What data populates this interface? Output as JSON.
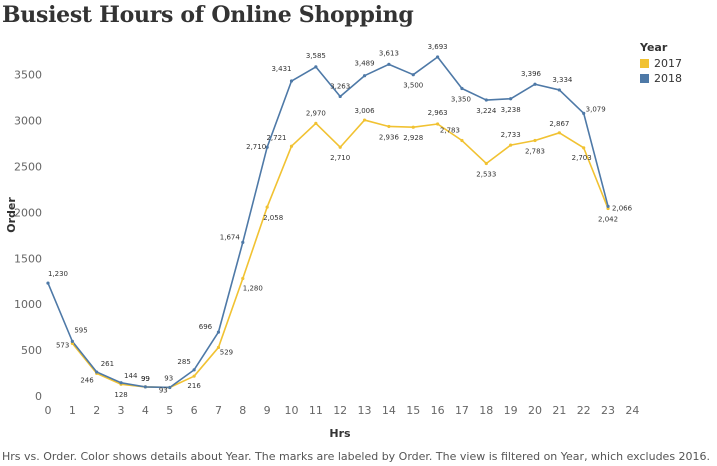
{
  "title": "Busiest Hours of Online Shopping",
  "caption": "Hrs vs. Order.  Color shows details about Year.  The marks are labeled by Order. The view is filtered on Year, which excludes 2016.",
  "legend": {
    "title": "Year",
    "items": [
      {
        "label": "2017",
        "color": "#f1c232"
      },
      {
        "label": "2018",
        "color": "#4e79a7"
      }
    ]
  },
  "chart_data": {
    "type": "line",
    "xlabel": "Hrs",
    "ylabel": "Order",
    "x_ticks": [
      "0",
      "1",
      "2",
      "3",
      "4",
      "5",
      "6",
      "7",
      "8",
      "9",
      "10",
      "11",
      "12",
      "13",
      "14",
      "15",
      "16",
      "17",
      "18",
      "19",
      "20",
      "21",
      "22",
      "23",
      "24"
    ],
    "y_ticks": [
      "0",
      "500",
      "1000",
      "1500",
      "2000",
      "2500",
      "3000",
      "3500"
    ],
    "xlim": [
      0,
      24
    ],
    "ylim": [
      0,
      3700
    ],
    "grid": false,
    "legend_position": "top-right",
    "x": [
      0,
      1,
      2,
      3,
      4,
      5,
      6,
      7,
      8,
      9,
      10,
      11,
      12,
      13,
      14,
      15,
      16,
      17,
      18,
      19,
      20,
      21,
      22,
      23
    ],
    "series": [
      {
        "name": "2017",
        "color": "#f1c232",
        "values": [
          null,
          573,
          246,
          128,
          99,
          93,
          216,
          529,
          1280,
          2058,
          2721,
          2970,
          2710,
          3006,
          2936,
          2928,
          2963,
          2783,
          2533,
          2733,
          2783,
          2867,
          2703,
          2042
        ],
        "labels": [
          "",
          "573",
          "246",
          "128",
          "99",
          "93",
          "216",
          "529",
          "1,280",
          "2,058",
          "2,721",
          "2,970",
          "2,710",
          "3,006",
          "2,936",
          "2,928",
          "2,963",
          "2,783",
          "2,533",
          "2,733",
          "2,783",
          "2,867",
          "2,703",
          "2,042"
        ]
      },
      {
        "name": "2018",
        "color": "#4e79a7",
        "values": [
          1230,
          595,
          261,
          144,
          99,
          93,
          285,
          696,
          1674,
          2710,
          3431,
          3585,
          3263,
          3489,
          3613,
          3500,
          3693,
          3350,
          3224,
          3238,
          3396,
          3334,
          3079,
          2066
        ],
        "labels": [
          "1,230",
          "595",
          "261",
          "144",
          "99",
          "93",
          "285",
          "696",
          "1,674",
          "2,710",
          "3,431",
          "3,585",
          "3,263",
          "3,489",
          "3,613",
          "3,500",
          "3,693",
          "3,350",
          "3,224",
          "3,238",
          "3,396",
          "3,334",
          "3,079",
          "2,066"
        ]
      }
    ]
  }
}
